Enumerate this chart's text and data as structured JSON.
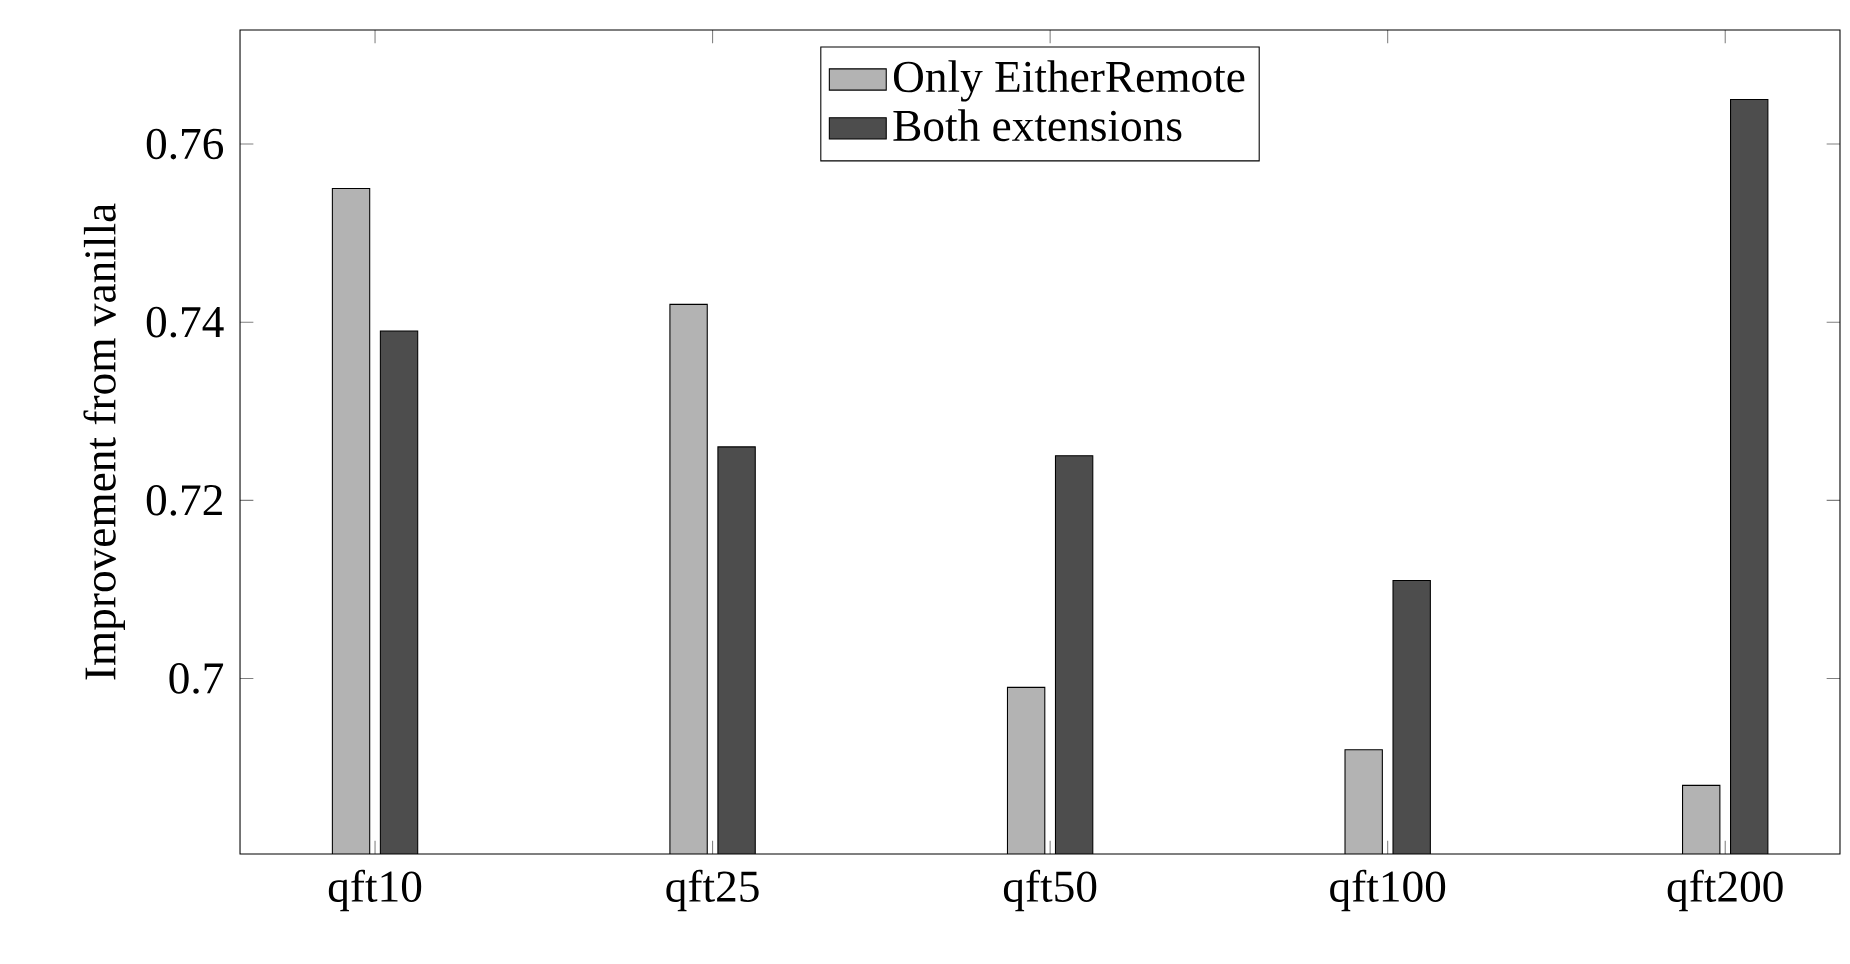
{
  "chart_data": {
    "type": "bar",
    "ylabel": "Improvement from vanilla",
    "categories": [
      "qft10",
      "qft25",
      "qft50",
      "qft100",
      "qft200"
    ],
    "series": [
      {
        "name": "Only EitherRemote",
        "color": "#b3b3b3",
        "values": [
          0.755,
          0.742,
          0.699,
          0.692,
          0.688
        ]
      },
      {
        "name": "Both extensions",
        "color": "#4d4d4d",
        "values": [
          0.739,
          0.726,
          0.725,
          0.711,
          0.765
        ]
      }
    ],
    "ylim": [
      0.6803,
      0.7728
    ],
    "yticks": [
      0.7,
      0.72,
      0.74,
      0.76
    ],
    "legend": "top",
    "grid": false
  }
}
